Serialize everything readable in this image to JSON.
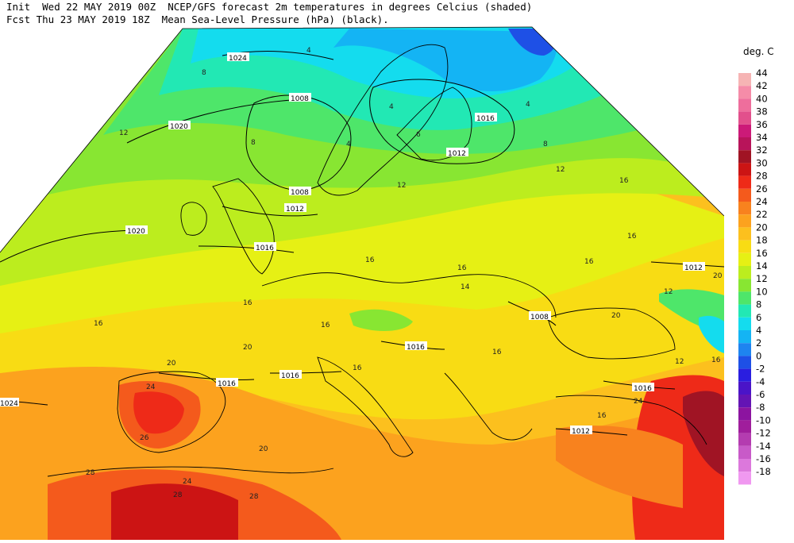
{
  "header": {
    "line1": "Init  Wed 22 MAY 2019 00Z  NCEP/GFS forecast 2m temperatures in degrees Celcius (shaded)",
    "line2": "Fcst Thu 23 MAY 2019 18Z  Mean Sea-Level Pressure (hPa) (black)."
  },
  "legend": {
    "title": "deg. C",
    "bins": [
      {
        "label": "44",
        "color": "#f6b4b4"
      },
      {
        "label": "42",
        "color": "#f58ca8"
      },
      {
        "label": "40",
        "color": "#ee6e9c"
      },
      {
        "label": "38",
        "color": "#e2508c"
      },
      {
        "label": "36",
        "color": "#cc1a78"
      },
      {
        "label": "34",
        "color": "#b8145a"
      },
      {
        "label": "32",
        "color": "#a01424"
      },
      {
        "label": "30",
        "color": "#cc1414"
      },
      {
        "label": "28",
        "color": "#ee2a18"
      },
      {
        "label": "26",
        "color": "#f45a1c"
      },
      {
        "label": "24",
        "color": "#f8821e"
      },
      {
        "label": "22",
        "color": "#fca21e"
      },
      {
        "label": "20",
        "color": "#fcc01e"
      },
      {
        "label": "18",
        "color": "#f8dc14"
      },
      {
        "label": "16",
        "color": "#e6f014"
      },
      {
        "label": "14",
        "color": "#bced1e"
      },
      {
        "label": "12",
        "color": "#88e632"
      },
      {
        "label": "10",
        "color": "#4ee66a"
      },
      {
        "label": "8",
        "color": "#22e8b4"
      },
      {
        "label": "6",
        "color": "#14dcee"
      },
      {
        "label": "4",
        "color": "#14b4f4"
      },
      {
        "label": "2",
        "color": "#1e84f0"
      },
      {
        "label": "0",
        "color": "#1e50e6"
      },
      {
        "label": "-2",
        "color": "#2a1ee0"
      },
      {
        "label": "-4",
        "color": "#4a14c8"
      },
      {
        "label": "-6",
        "color": "#6414b4"
      },
      {
        "label": "-8",
        "color": "#8c14a0"
      },
      {
        "label": "-10",
        "color": "#a01e9c"
      },
      {
        "label": "-12",
        "color": "#b43cb0"
      },
      {
        "label": "-14",
        "color": "#c85ac8"
      },
      {
        "label": "-16",
        "color": "#dc78dc"
      },
      {
        "label": "-18",
        "color": "#f098f0"
      }
    ]
  },
  "isobar_labels": [
    "1024",
    "1020",
    "1020",
    "1008",
    "1016",
    "1012",
    "1008",
    "1012",
    "1016",
    "1012",
    "1008",
    "1016",
    "1016",
    "1016",
    "1016",
    "1012",
    "1024"
  ],
  "temp_labels": [
    "8",
    "4",
    "4",
    "4",
    "6",
    "8",
    "12",
    "12",
    "12",
    "16",
    "16",
    "16",
    "16",
    "16",
    "16",
    "16",
    "16",
    "16",
    "16",
    "20",
    "20",
    "20",
    "20",
    "24",
    "24",
    "24",
    "26",
    "28",
    "28",
    "28",
    "12",
    "12",
    "14",
    "16",
    "8",
    "4",
    "20",
    "16"
  ]
}
